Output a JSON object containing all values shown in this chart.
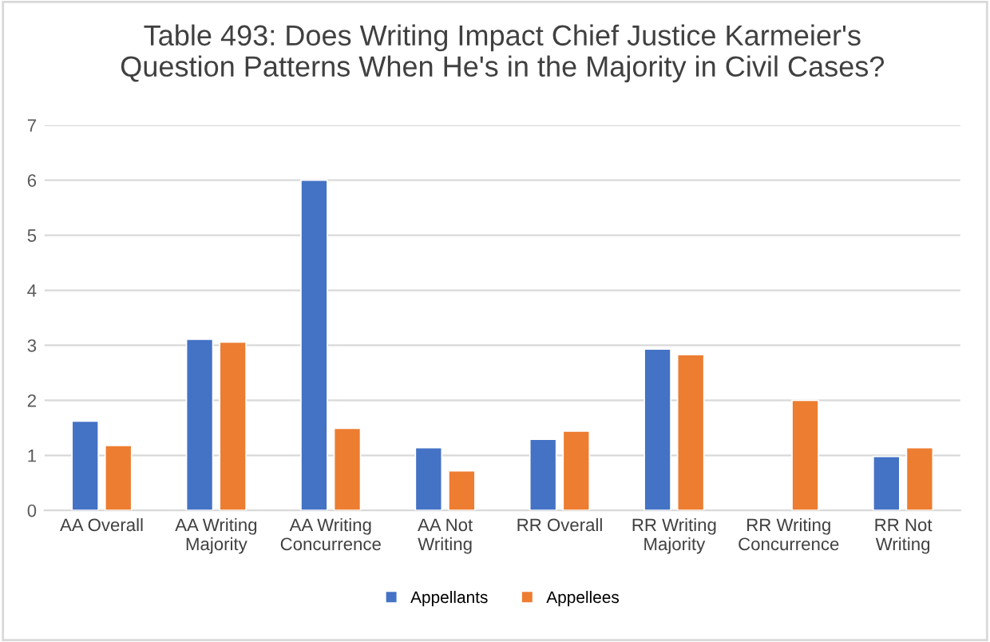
{
  "chart_data": {
    "type": "bar",
    "title": "Table 493: Does Writing Impact Chief Justice Karmeier's Question Patterns When He's in the Majority in Civil Cases?",
    "categories": [
      "AA Overall",
      "AA Writing Majority",
      "AA Writing Concurrence",
      "AA Not Writing",
      "RR Overall",
      "RR Writing Majority",
      "RR Writing Concurrence",
      "RR Not Writing"
    ],
    "series": [
      {
        "name": "Appellants",
        "color": "#4472c4",
        "values": [
          1.62,
          3.11,
          6.0,
          1.14,
          1.29,
          2.93,
          null,
          0.98
        ]
      },
      {
        "name": "Appellees",
        "color": "#ed7d31",
        "values": [
          1.18,
          3.06,
          1.49,
          0.72,
          1.44,
          2.83,
          2.0,
          1.14
        ]
      }
    ],
    "ylim": [
      0,
      7
    ],
    "yticks": [
      0,
      1,
      2,
      3,
      4,
      5,
      6,
      7
    ],
    "grid": "y",
    "legend": "bottom"
  }
}
